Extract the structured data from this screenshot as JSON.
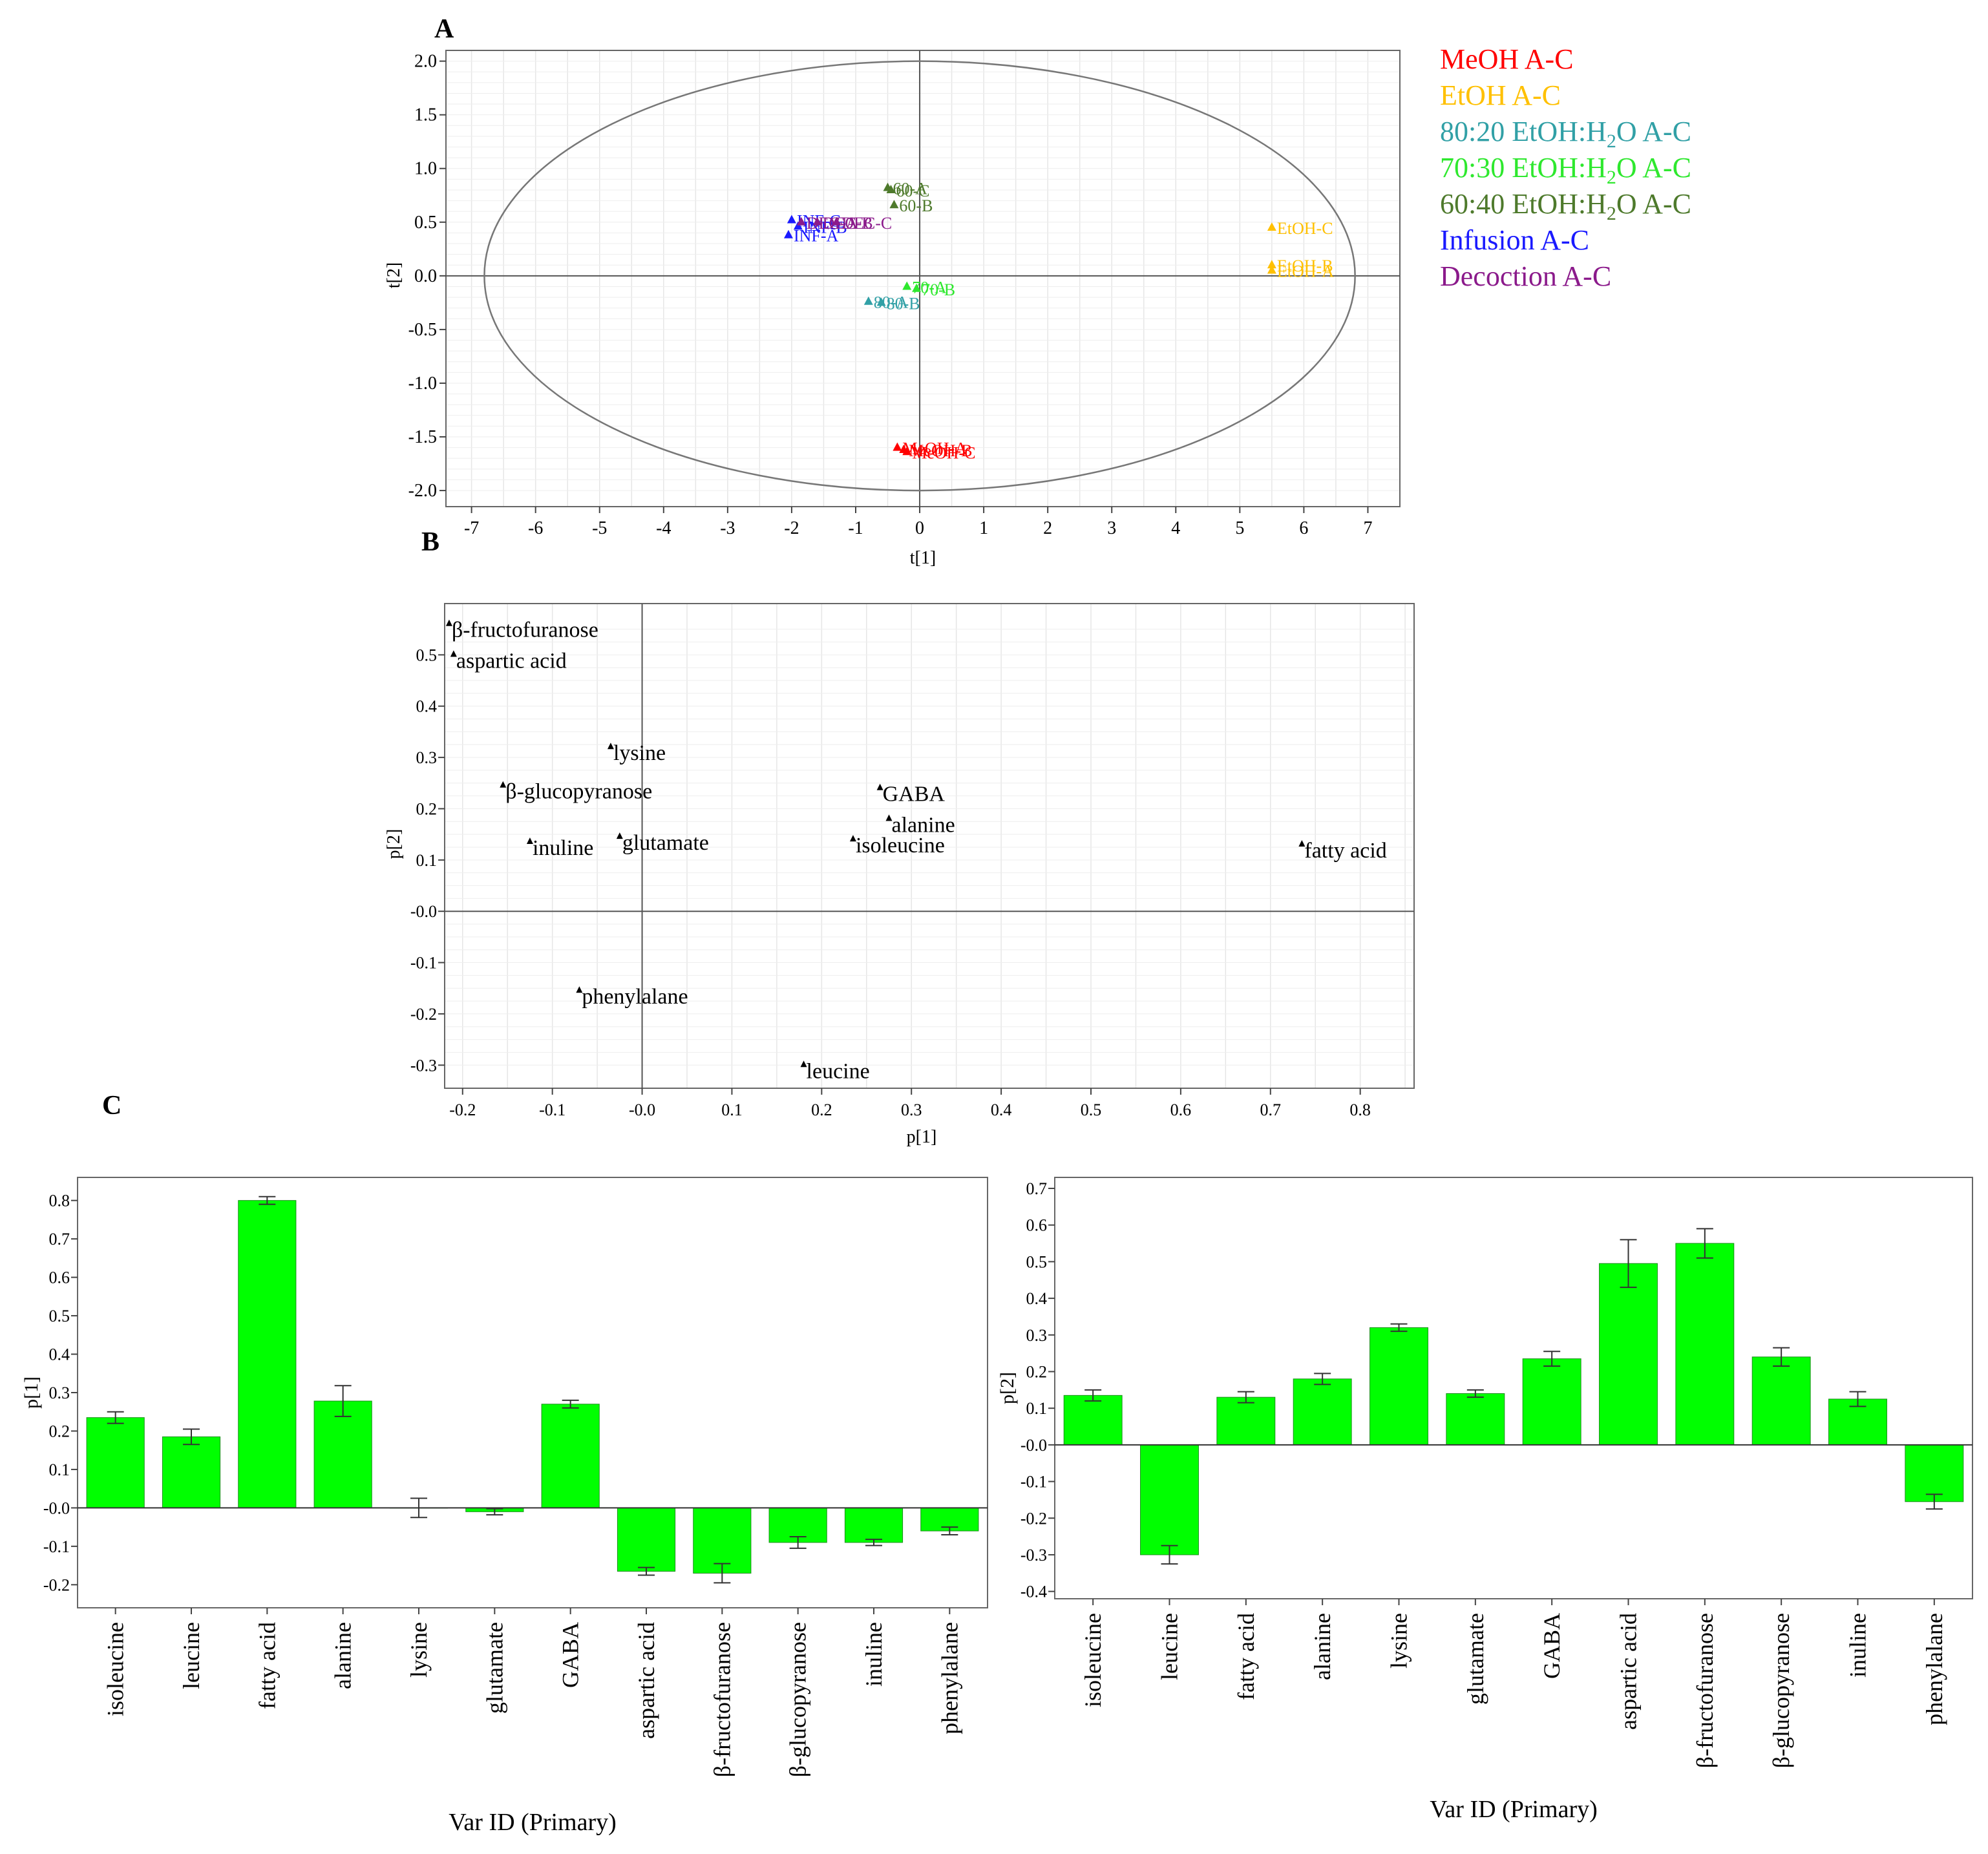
{
  "panel_labels": [
    "A",
    "B",
    "C"
  ],
  "legend": [
    {
      "label": "MeOH A-C",
      "color": "#ff0000"
    },
    {
      "label": "EtOH A-C",
      "color": "#ffc000"
    },
    {
      "label": "80:20 EtOH:H2O A-C",
      "color": "#31a0a6"
    },
    {
      "label": "70:30 EtOH:H2O A-C",
      "color": "#2ee82e"
    },
    {
      "label": "60:40 EtOH:H2O A-C",
      "color": "#4e7a2c"
    },
    {
      "label": "Infusion A-C",
      "color": "#1a1aff"
    },
    {
      "label": "Decoction A-C",
      "color": "#8b1a8b"
    }
  ],
  "chart_data": [
    {
      "id": "A",
      "type": "scatter",
      "xlabel": "t[1]",
      "ylabel": "t[2]",
      "xlim": [
        -7.4,
        7.5
      ],
      "ylim": [
        -2.15,
        2.1
      ],
      "xticks": [
        -7,
        -6,
        -5,
        -4,
        -3,
        -2,
        -1,
        0,
        1,
        2,
        3,
        4,
        5,
        6,
        7
      ],
      "yticks": [
        -2.0,
        -1.5,
        -1.0,
        -0.5,
        0.0,
        0.5,
        1.0,
        1.5,
        2.0
      ],
      "ytick_labels": [
        "-2.0",
        "-1.5",
        "-1.0",
        "-0.5",
        "0.0",
        "0.5",
        "1.0",
        "1.5",
        "2.0"
      ],
      "grid": true,
      "ellipse": {
        "cx": 0,
        "cy": 0,
        "rx": 6.8,
        "ry": 2.0
      },
      "points": [
        {
          "x": -2.0,
          "y": 0.52,
          "label": "INF-C",
          "group": 5
        },
        {
          "x": -1.9,
          "y": 0.46,
          "label": "INF-B",
          "group": 5
        },
        {
          "x": -2.05,
          "y": 0.38,
          "label": "INF-A",
          "group": 5
        },
        {
          "x": -1.85,
          "y": 0.5,
          "label": "DEC-A",
          "group": 6
        },
        {
          "x": -1.6,
          "y": 0.5,
          "label": "DEC-B",
          "group": 6
        },
        {
          "x": -1.3,
          "y": 0.5,
          "label": "DEC-C",
          "group": 6
        },
        {
          "x": -0.5,
          "y": 0.82,
          "label": "60-A",
          "group": 4
        },
        {
          "x": -0.45,
          "y": 0.8,
          "label": "60-C",
          "group": 4
        },
        {
          "x": -0.4,
          "y": 0.66,
          "label": "60-B",
          "group": 4
        },
        {
          "x": -0.2,
          "y": -0.1,
          "label": "70-A",
          "group": 3
        },
        {
          "x": -0.05,
          "y": -0.12,
          "label": "70-B",
          "group": 3
        },
        {
          "x": -0.8,
          "y": -0.24,
          "label": "80-A",
          "group": 2
        },
        {
          "x": -0.6,
          "y": -0.25,
          "label": "80-B",
          "group": 2
        },
        {
          "x": 5.5,
          "y": 0.45,
          "label": "EtOH-C",
          "group": 1
        },
        {
          "x": 5.5,
          "y": 0.1,
          "label": "EtOH-B",
          "group": 1
        },
        {
          "x": 5.5,
          "y": 0.05,
          "label": "EtOH-A",
          "group": 1
        },
        {
          "x": -0.35,
          "y": -1.6,
          "label": "MeOH-A",
          "group": 0
        },
        {
          "x": -0.25,
          "y": -1.62,
          "label": "MeOH-B",
          "group": 0
        },
        {
          "x": -0.2,
          "y": -1.64,
          "label": "MeOH-C",
          "group": 0
        }
      ]
    },
    {
      "id": "B",
      "type": "scatter",
      "xlabel": "p[1]",
      "ylabel": "p[2]",
      "xlim": [
        -0.22,
        0.86
      ],
      "ylim": [
        -0.345,
        0.6
      ],
      "xticks": [
        -0.2,
        -0.1,
        0.0,
        0.1,
        0.2,
        0.3,
        0.4,
        0.5,
        0.6,
        0.7,
        0.8
      ],
      "xtick_labels": [
        "-0.2",
        "-0.1",
        "-0.0",
        "0.1",
        "0.2",
        "0.3",
        "0.4",
        "0.5",
        "0.6",
        "0.7",
        "0.8"
      ],
      "yticks": [
        -0.3,
        -0.2,
        -0.1,
        0.0,
        0.1,
        0.2,
        0.3,
        0.4,
        0.5
      ],
      "ytick_labels": [
        "-0.3",
        "-0.2",
        "-0.1",
        "-0.0",
        "0.1",
        "0.2",
        "0.3",
        "0.4",
        "0.5"
      ],
      "grid": true,
      "points": [
        {
          "x": -0.215,
          "y": 0.56,
          "label": "β-fructofuranose"
        },
        {
          "x": -0.21,
          "y": 0.5,
          "label": "aspartic acid"
        },
        {
          "x": -0.035,
          "y": 0.32,
          "label": "lysine"
        },
        {
          "x": -0.155,
          "y": 0.245,
          "label": "β-glucopyranose"
        },
        {
          "x": 0.265,
          "y": 0.24,
          "label": "GABA"
        },
        {
          "x": 0.275,
          "y": 0.18,
          "label": "alanine"
        },
        {
          "x": -0.125,
          "y": 0.135,
          "label": "inuline"
        },
        {
          "x": -0.025,
          "y": 0.145,
          "label": "glutamate"
        },
        {
          "x": 0.235,
          "y": 0.14,
          "label": "isoleucine"
        },
        {
          "x": 0.735,
          "y": 0.13,
          "label": "fatty acid"
        },
        {
          "x": -0.07,
          "y": -0.155,
          "label": "phenylalane"
        },
        {
          "x": 0.18,
          "y": -0.3,
          "label": "leucine"
        }
      ]
    },
    {
      "id": "C-left",
      "type": "bar",
      "xlabel": "Var ID (Primary)",
      "ylabel": "p[1]",
      "ylim": [
        -0.26,
        0.86
      ],
      "yticks": [
        -0.2,
        -0.1,
        0.0,
        0.1,
        0.2,
        0.3,
        0.4,
        0.5,
        0.6,
        0.7,
        0.8
      ],
      "ytick_labels": [
        "-0.2",
        "-0.1",
        "-0.0",
        "0.1",
        "0.2",
        "0.3",
        "0.4",
        "0.5",
        "0.6",
        "0.7",
        "0.8"
      ],
      "categories": [
        "isoleucine",
        "leucine",
        "fatty acid",
        "alanine",
        "lysine",
        "glutamate",
        "GABA",
        "aspartic acid",
        "β-fructofuranose",
        "β-glucopyranose",
        "inuline",
        "phenylalane"
      ],
      "values": [
        0.235,
        0.185,
        0.8,
        0.278,
        0.0,
        -0.01,
        0.27,
        -0.165,
        -0.17,
        -0.09,
        -0.09,
        -0.06
      ],
      "errors": [
        0.015,
        0.02,
        0.01,
        0.04,
        0.025,
        0.008,
        0.01,
        0.01,
        0.025,
        0.015,
        0.008,
        0.01
      ],
      "color": "#00ff00"
    },
    {
      "id": "C-right",
      "type": "bar",
      "xlabel": "Var ID (Primary)",
      "ylabel": "p[2]",
      "ylim": [
        -0.42,
        0.73
      ],
      "yticks": [
        -0.4,
        -0.3,
        -0.2,
        -0.1,
        0.0,
        0.1,
        0.2,
        0.3,
        0.4,
        0.5,
        0.6,
        0.7
      ],
      "ytick_labels": [
        "-0.4",
        "-0.3",
        "-0.2",
        "-0.1",
        "-0.0",
        "0.1",
        "0.2",
        "0.3",
        "0.4",
        "0.5",
        "0.6",
        "0.7"
      ],
      "categories": [
        "isoleucine",
        "leucine",
        "fatty acid",
        "alanine",
        "lysine",
        "glutamate",
        "GABA",
        "aspartic acid",
        "β-fructofuranose",
        "β-glucopyranose",
        "inuline",
        "phenylalane"
      ],
      "values": [
        0.135,
        -0.3,
        0.13,
        0.18,
        0.32,
        0.14,
        0.235,
        0.495,
        0.55,
        0.24,
        0.125,
        -0.155
      ],
      "errors": [
        0.015,
        0.025,
        0.015,
        0.015,
        0.01,
        0.01,
        0.02,
        0.065,
        0.04,
        0.025,
        0.02,
        0.02
      ],
      "color": "#00ff00"
    }
  ]
}
